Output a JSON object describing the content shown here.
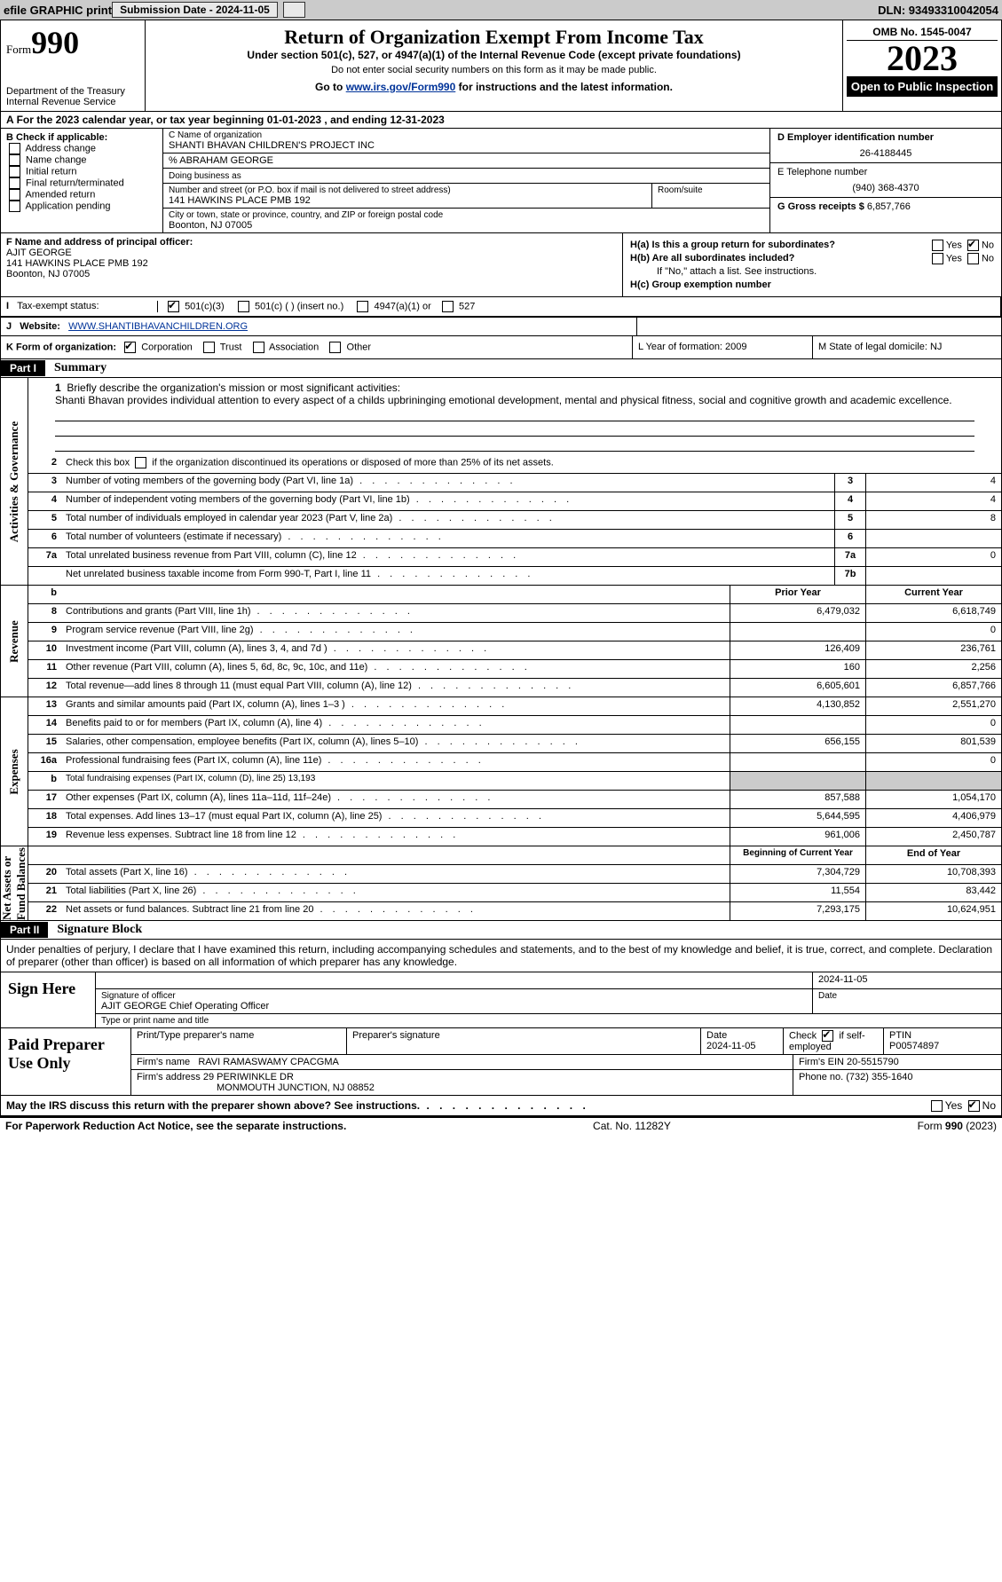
{
  "top": {
    "efile": "efile GRAPHIC print",
    "sub_label": "Submission Date - 2024-11-05",
    "dln": "DLN: 93493310042054"
  },
  "header": {
    "form_prefix": "Form",
    "form_no": "990",
    "dept": "Department of the Treasury\nInternal Revenue Service",
    "title": "Return of Organization Exempt From Income Tax",
    "sub1": "Under section 501(c), 527, or 4947(a)(1) of the Internal Revenue Code (except private foundations)",
    "sub2": "Do not enter social security numbers on this form as it may be made public.",
    "sub3_pre": "Go to ",
    "sub3_link": "www.irs.gov/Form990",
    "sub3_post": " for instructions and the latest information.",
    "omb": "OMB No. 1545-0047",
    "year": "2023",
    "inspect": "Open to Public Inspection"
  },
  "row_a": "For the 2023 calendar year, or tax year beginning 01-01-2023    , and ending 12-31-2023",
  "b": {
    "label": "B Check if applicable:",
    "items": [
      "Address change",
      "Name change",
      "Initial return",
      "Final return/terminated",
      "Amended return",
      "Application pending"
    ]
  },
  "c": {
    "name_label": "C Name of organization",
    "name": "SHANTI BHAVAN CHILDREN'S PROJECT INC",
    "careof": "% ABRAHAM GEORGE",
    "dba_label": "Doing business as",
    "addr_label": "Number and street (or P.O. box if mail is not delivered to street address)",
    "addr": "141 HAWKINS PLACE PMB 192",
    "room_label": "Room/suite",
    "city_label": "City or town, state or province, country, and ZIP or foreign postal code",
    "city": "Boonton, NJ  07005"
  },
  "d": {
    "ein_label": "D Employer identification number",
    "ein": "26-4188445",
    "tel_label": "E Telephone number",
    "tel": "(940) 368-4370",
    "gross_label": "G Gross receipts $",
    "gross": "6,857,766"
  },
  "f": {
    "label": "F  Name and address of principal officer:",
    "name": "AJIT GEORGE",
    "addr1": "141 HAWKINS PLACE PMB 192",
    "addr2": "Boonton, NJ  07005"
  },
  "h": {
    "a": "H(a)  Is this a group return for subordinates?",
    "b": "H(b)  Are all subordinates included?",
    "note": "If \"No,\" attach a list. See instructions.",
    "c": "H(c)  Group exemption number  ",
    "yes": "Yes",
    "no": "No"
  },
  "i": {
    "label": "Tax-exempt status:",
    "o1": "501(c)(3)",
    "o2": "501(c) (  ) (insert no.)",
    "o3": "4947(a)(1) or",
    "o4": "527"
  },
  "j": {
    "label": "Website: ",
    "val": "WWW.SHANTIBHAVANCHILDREN.ORG"
  },
  "k": {
    "label": "K Form of organization:",
    "o1": "Corporation",
    "o2": "Trust",
    "o3": "Association",
    "o4": "Other",
    "l": "L Year of formation: 2009",
    "m": "M State of legal domicile: NJ"
  },
  "part1": {
    "hdr": "Part I",
    "title": "Summary"
  },
  "mission_label": "Briefly describe the organization's mission or most significant activities:",
  "mission": "Shanti Bhavan provides individual attention to every aspect of a childs upbrininging emotional development, mental and physical fitness, social and cognitive growth and academic excellence.",
  "s2": "Check this box ",
  "s2b": " if the organization discontinued its operations or disposed of more than 25% of its net assets.",
  "gov": [
    {
      "n": "3",
      "t": "Number of voting members of the governing body (Part VI, line 1a)",
      "b": "3",
      "v": "4"
    },
    {
      "n": "4",
      "t": "Number of independent voting members of the governing body (Part VI, line 1b)",
      "b": "4",
      "v": "4"
    },
    {
      "n": "5",
      "t": "Total number of individuals employed in calendar year 2023 (Part V, line 2a)",
      "b": "5",
      "v": "8"
    },
    {
      "n": "6",
      "t": "Total number of volunteers (estimate if necessary)",
      "b": "6",
      "v": ""
    },
    {
      "n": "7a",
      "t": "Total unrelated business revenue from Part VIII, column (C), line 12",
      "b": "7a",
      "v": "0"
    },
    {
      "n": "",
      "t": "Net unrelated business taxable income from Form 990-T, Part I, line 11",
      "b": "7b",
      "v": ""
    }
  ],
  "rev_hdr": {
    "p": "Prior Year",
    "c": "Current Year"
  },
  "rev": [
    {
      "n": "8",
      "t": "Contributions and grants (Part VIII, line 1h)",
      "p": "6,479,032",
      "c": "6,618,749"
    },
    {
      "n": "9",
      "t": "Program service revenue (Part VIII, line 2g)",
      "p": "",
      "c": "0"
    },
    {
      "n": "10",
      "t": "Investment income (Part VIII, column (A), lines 3, 4, and 7d )",
      "p": "126,409",
      "c": "236,761"
    },
    {
      "n": "11",
      "t": "Other revenue (Part VIII, column (A), lines 5, 6d, 8c, 9c, 10c, and 11e)",
      "p": "160",
      "c": "2,256"
    },
    {
      "n": "12",
      "t": "Total revenue—add lines 8 through 11 (must equal Part VIII, column (A), line 12)",
      "p": "6,605,601",
      "c": "6,857,766"
    }
  ],
  "exp": [
    {
      "n": "13",
      "t": "Grants and similar amounts paid (Part IX, column (A), lines 1–3 )",
      "p": "4,130,852",
      "c": "2,551,270"
    },
    {
      "n": "14",
      "t": "Benefits paid to or for members (Part IX, column (A), line 4)",
      "p": "",
      "c": "0"
    },
    {
      "n": "15",
      "t": "Salaries, other compensation, employee benefits (Part IX, column (A), lines 5–10)",
      "p": "656,155",
      "c": "801,539"
    },
    {
      "n": "16a",
      "t": "Professional fundraising fees (Part IX, column (A), line 11e)",
      "p": "",
      "c": "0"
    },
    {
      "n": "b",
      "t": "Total fundraising expenses (Part IX, column (D), line 25) 13,193",
      "shade": true
    },
    {
      "n": "17",
      "t": "Other expenses (Part IX, column (A), lines 11a–11d, 11f–24e)",
      "p": "857,588",
      "c": "1,054,170"
    },
    {
      "n": "18",
      "t": "Total expenses. Add lines 13–17 (must equal Part IX, column (A), line 25)",
      "p": "5,644,595",
      "c": "4,406,979"
    },
    {
      "n": "19",
      "t": "Revenue less expenses. Subtract line 18 from line 12",
      "p": "961,006",
      "c": "2,450,787"
    }
  ],
  "na_hdr": {
    "p": "Beginning of Current Year",
    "c": "End of Year"
  },
  "na": [
    {
      "n": "20",
      "t": "Total assets (Part X, line 16)",
      "p": "7,304,729",
      "c": "10,708,393"
    },
    {
      "n": "21",
      "t": "Total liabilities (Part X, line 26)",
      "p": "11,554",
      "c": "83,442"
    },
    {
      "n": "22",
      "t": "Net assets or fund balances. Subtract line 21 from line 20",
      "p": "7,293,175",
      "c": "10,624,951"
    }
  ],
  "vlabels": {
    "gov": "Activities & Governance",
    "rev": "Revenue",
    "exp": "Expenses",
    "na": "Net Assets or\nFund Balances"
  },
  "part2": {
    "hdr": "Part II",
    "title": "Signature Block"
  },
  "perjury": "Under penalties of perjury, I declare that I have examined this return, including accompanying schedules and statements, and to the best of my knowledge and belief, it is true, correct, and complete. Declaration of preparer (other than officer) is based on all information of which preparer has any knowledge.",
  "sign": {
    "here": "Sign Here",
    "date": "2024-11-05",
    "sig_label": "Signature of officer",
    "name": "AJIT GEORGE  Chief Operating Officer",
    "type_label": "Type or print name and title",
    "date_label": "Date"
  },
  "prep": {
    "label": "Paid Preparer Use Only",
    "h1": "Print/Type preparer's name",
    "h2": "Preparer's signature",
    "h3": "Date",
    "h3v": "2024-11-05",
    "h4": "Check",
    "h4b": "if self-employed",
    "h5": "PTIN",
    "h5v": "P00574897",
    "firm_label": "Firm's name   ",
    "firm": "RAVI RAMASWAMY CPACGMA",
    "ein_label": "Firm's EIN  ",
    "ein": "20-5515790",
    "addr_label": "Firm's address ",
    "addr1": "29 PERIWINKLE DR",
    "addr2": "MONMOUTH JUNCTION, NJ  08852",
    "phone_label": "Phone no. ",
    "phone": "(732) 355-1640"
  },
  "discuss": "May the IRS discuss this return with the preparer shown above? See instructions.",
  "foot": {
    "l": "For Paperwork Reduction Act Notice, see the separate instructions.",
    "c": "Cat. No. 11282Y",
    "r": "Form 990 (2023)"
  }
}
